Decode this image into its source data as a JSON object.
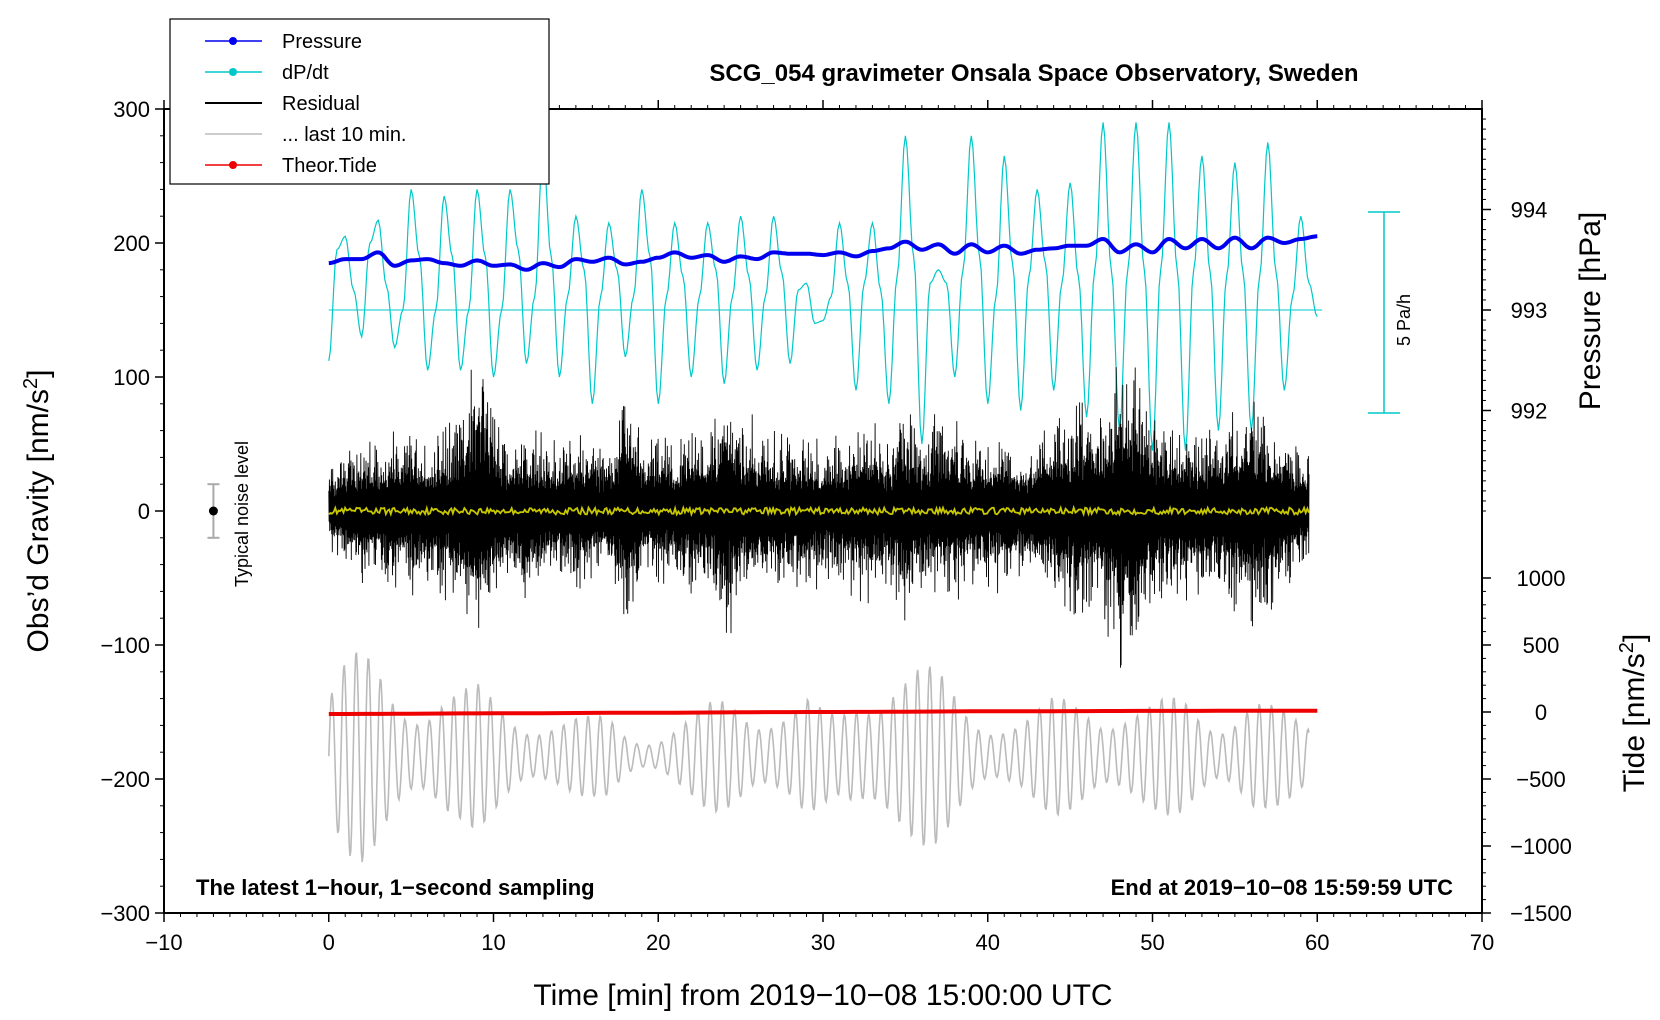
{
  "chart_data": {
    "type": "line",
    "title": "SCG_054 gravimeter Onsala Space Observatory, Sweden",
    "xlabel": "Time [min] from 2019−10−08 15:00:00 UTC",
    "ylabel_left": "Obs’d Gravity [nm/s",
    "ylabel_left_sup": "2",
    "ylabel_left_end": "]",
    "ylabel_right_pressure": "Pressure [hPa]",
    "ylabel_right_tide": "Tide [nm/s",
    "ylabel_right_tide_sup": "2",
    "ylabel_right_tide_end": "]",
    "xlim": [
      -10,
      70
    ],
    "ylim_left": [
      -300,
      300
    ],
    "x_ticks": [
      {
        "value": -10,
        "label": "−10"
      },
      {
        "value": 0,
        "label": "0"
      },
      {
        "value": 10,
        "label": "10"
      },
      {
        "value": 20,
        "label": "20"
      },
      {
        "value": 30,
        "label": "30"
      },
      {
        "value": 40,
        "label": "40"
      },
      {
        "value": 50,
        "label": "50"
      },
      {
        "value": 60,
        "label": "60"
      },
      {
        "value": 70,
        "label": "70"
      }
    ],
    "left_ticks": [
      {
        "value": 300,
        "label": "300"
      },
      {
        "value": 200,
        "label": "200"
      },
      {
        "value": 100,
        "label": "100"
      },
      {
        "value": 0,
        "label": "0"
      },
      {
        "value": -100,
        "label": "−100"
      },
      {
        "value": -200,
        "label": "−200"
      },
      {
        "value": -300,
        "label": "−300"
      }
    ],
    "pressure_axis": {
      "anchor_value": 993,
      "anchor_gravity": 150,
      "gravity_per_unit": 75,
      "ticks": [
        {
          "value": 994,
          "label": "994"
        },
        {
          "value": 993,
          "label": "993"
        },
        {
          "value": 992,
          "label": "992"
        }
      ]
    },
    "tide_axis": {
      "anchor_value": 0,
      "anchor_gravity": -150,
      "gravity_per_unit": 0.1,
      "ticks": [
        {
          "value": 1000,
          "label": "1000"
        },
        {
          "value": 500,
          "label": "500"
        },
        {
          "value": 0,
          "label": "0"
        },
        {
          "value": -500,
          "label": "−500"
        },
        {
          "value": -1000,
          "label": "−1000"
        },
        {
          "value": -1500,
          "label": "−1500"
        }
      ]
    },
    "legend": {
      "position": "top-left",
      "entries": [
        {
          "label": "Pressure",
          "color": "#0000ee",
          "marker": true
        },
        {
          "label": "dP/dt",
          "color": "#00c8c8",
          "marker": true
        },
        {
          "label": "Residual",
          "color": "#000000",
          "marker": false
        },
        {
          "label": "... last 10 min.",
          "color": "#bbbbbb",
          "marker": false
        },
        {
          "label": "Theor.Tide",
          "color": "#ee0000",
          "marker": true
        }
      ]
    },
    "series": [
      {
        "name": "Pressure",
        "color": "#0000ee",
        "axis": "left",
        "x": [
          0,
          1,
          2,
          3,
          4,
          5,
          6,
          7,
          8,
          9,
          10,
          11,
          12,
          13,
          14,
          15,
          16,
          17,
          18,
          19,
          20,
          21,
          22,
          23,
          24,
          25,
          26,
          27,
          28,
          29,
          30,
          31,
          32,
          33,
          34,
          35,
          36,
          37,
          38,
          39,
          40,
          41,
          42,
          43,
          44,
          45,
          46,
          47,
          48,
          49,
          50,
          51,
          52,
          53,
          54,
          55,
          56,
          57,
          58,
          59,
          60
        ],
        "values": [
          185,
          188,
          188,
          193,
          183,
          187,
          188,
          185,
          183,
          187,
          183,
          184,
          180,
          185,
          182,
          188,
          186,
          189,
          184,
          186,
          189,
          193,
          189,
          191,
          186,
          190,
          188,
          193,
          192,
          192,
          191,
          193,
          190,
          194,
          196,
          201,
          195,
          199,
          192,
          199,
          193,
          198,
          192,
          195,
          196,
          198,
          198,
          203,
          193,
          199,
          193,
          203,
          196,
          203,
          196,
          204,
          196,
          204,
          200,
          203,
          205
        ]
      },
      {
        "name": "dP/dt",
        "color": "#00c8c8",
        "axis": "left",
        "baseline": 150,
        "x": [
          0,
          0.5,
          1.0,
          1.5,
          2.0,
          2.5,
          3.0,
          3.5,
          4.0,
          4.5,
          5.0,
          5.5,
          6.0,
          6.5,
          7.0,
          7.5,
          8.0,
          8.5,
          9.0,
          9.5,
          10.0,
          10.5,
          11.0,
          11.5,
          12.0,
          12.5,
          13.0,
          13.5,
          14.0,
          14.5,
          15.0,
          15.5,
          16.0,
          16.5,
          17.0,
          17.5,
          18.0,
          18.5,
          19.0,
          19.5,
          20.0,
          20.5,
          21.0,
          21.5,
          22.0,
          22.5,
          23.0,
          23.5,
          24.0,
          24.5,
          25.0,
          25.5,
          26.0,
          26.5,
          27.0,
          27.5,
          28.0,
          28.5,
          29.0,
          29.5,
          30.0,
          30.5,
          31.0,
          31.5,
          32.0,
          32.5,
          33.0,
          33.5,
          34.0,
          34.5,
          35.0,
          35.5,
          36.0,
          36.5,
          37.0,
          37.5,
          38.0,
          38.5,
          39.0,
          39.5,
          40.0,
          40.5,
          41.0,
          41.5,
          42.0,
          42.5,
          43.0,
          43.5,
          44.0,
          44.5,
          45.0,
          45.5,
          46.0,
          46.5,
          47.0,
          47.5,
          48.0,
          48.5,
          49.0,
          49.5,
          50.0,
          50.5,
          51.0,
          51.5,
          52.0,
          52.5,
          53.0,
          53.5,
          54.0,
          54.5,
          55.0,
          55.5,
          56.0,
          56.5,
          57.0,
          57.5,
          58.0,
          58.5,
          59.0,
          59.5,
          60.0
        ],
        "values": [
          112,
          195,
          205,
          165,
          130,
          200,
          217,
          168,
          122,
          150,
          240,
          190,
          105,
          150,
          235,
          190,
          105,
          150,
          240,
          190,
          100,
          150,
          240,
          195,
          110,
          160,
          270,
          190,
          100,
          160,
          220,
          180,
          80,
          160,
          215,
          180,
          115,
          160,
          240,
          190,
          80,
          160,
          215,
          175,
          100,
          160,
          215,
          180,
          95,
          160,
          220,
          175,
          105,
          160,
          220,
          178,
          110,
          165,
          170,
          140,
          142,
          160,
          215,
          170,
          90,
          170,
          215,
          165,
          80,
          175,
          280,
          190,
          50,
          170,
          180,
          170,
          100,
          180,
          280,
          190,
          80,
          160,
          265,
          185,
          75,
          175,
          240,
          185,
          90,
          170,
          245,
          175,
          70,
          180,
          290,
          180,
          60,
          180,
          290,
          180,
          45,
          180,
          290,
          180,
          45,
          180,
          265,
          178,
          60,
          175,
          260,
          178,
          60,
          175,
          275,
          178,
          90,
          160,
          220,
          170,
          145
        ]
      },
      {
        "name": "Residual",
        "color": "#000000",
        "axis": "left",
        "x": [
          0,
          1,
          2,
          3,
          4,
          5,
          6,
          7,
          8,
          9,
          10,
          11,
          12,
          13,
          14,
          15,
          16,
          17,
          18,
          19,
          20,
          21,
          22,
          23,
          24,
          25,
          26,
          27,
          28,
          29,
          30,
          31,
          32,
          33,
          34,
          35,
          36,
          37,
          38,
          39,
          40,
          41,
          42,
          43,
          44,
          45,
          46,
          47,
          48,
          49,
          50,
          51,
          52,
          53,
          54,
          55,
          56,
          57,
          58,
          59
        ],
        "envelope": [
          30,
          45,
          55,
          50,
          55,
          65,
          55,
          60,
          70,
          120,
          75,
          50,
          65,
          55,
          50,
          60,
          55,
          45,
          95,
          55,
          55,
          50,
          65,
          55,
          90,
          70,
          65,
          60,
          55,
          60,
          50,
          55,
          60,
          70,
          55,
          80,
          60,
          65,
          70,
          55,
          55,
          60,
          45,
          55,
          70,
          75,
          90,
          70,
          120,
          110,
          70,
          65,
          60,
          65,
          65,
          75,
          90,
          70,
          60,
          45
        ]
      },
      {
        "name": "Residual (filtered)",
        "color": "#c8c800",
        "axis": "left",
        "x": [
          0,
          60
        ],
        "values": [
          0,
          0
        ]
      },
      {
        "name": "... last 10 min.",
        "color": "#bbbbbb",
        "axis": "left",
        "x": [
          0,
          1,
          2,
          3,
          4,
          5,
          6,
          7,
          8,
          9,
          10,
          11,
          12,
          13,
          14,
          15,
          16,
          17,
          18,
          19,
          20,
          21,
          22,
          23,
          24,
          25,
          26,
          27,
          28,
          29,
          30,
          31,
          32,
          33,
          34,
          35,
          36,
          37,
          38,
          39,
          40,
          41,
          42,
          43,
          44,
          45,
          46,
          47,
          48,
          49,
          50,
          51,
          52,
          53,
          54,
          55,
          56,
          57,
          58,
          59
        ],
        "center": -183,
        "envelope": [
          60,
          75,
          80,
          75,
          65,
          60,
          55,
          55,
          50,
          55,
          50,
          45,
          40,
          35,
          30,
          30,
          30,
          35,
          25,
          20,
          20,
          25,
          30,
          40,
          50,
          55,
          50,
          45,
          40,
          45,
          35,
          35,
          60,
          80,
          85,
          75,
          70,
          65,
          55,
          45,
          40,
          35,
          30,
          35,
          45,
          50,
          55,
          50,
          45,
          40,
          40,
          45,
          50,
          45,
          40,
          45,
          50,
          40,
          35,
          30
        ]
      },
      {
        "name": "Theor.Tide",
        "color": "#ee0000",
        "axis": "left",
        "x": [
          0,
          10,
          20,
          30,
          40,
          50,
          60
        ],
        "values": [
          -151.5,
          -151,
          -150.5,
          -150,
          -149.5,
          -149.2,
          -149
        ]
      }
    ],
    "annotations": {
      "noise_label": "Typical noise level",
      "noise_value": 0,
      "noise_range": [
        -20,
        20
      ],
      "scale_bar_label": "5 Pa/h",
      "footer_left": "The latest 1−hour, 1−second sampling",
      "footer_right": "End at 2019−10−08 15:59:59 UTC"
    },
    "grid": false
  }
}
